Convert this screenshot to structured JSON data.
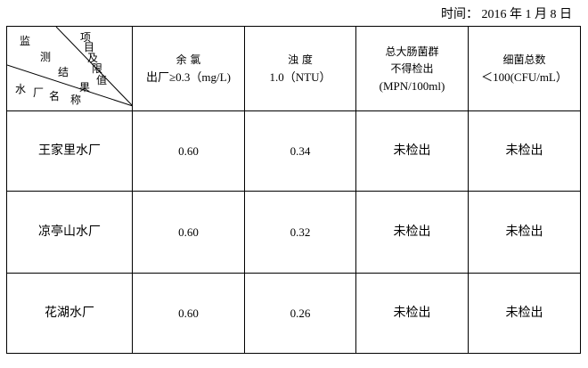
{
  "date": "时间： 2016 年 1 月 8 日",
  "corner": {
    "top": [
      "项",
      "目",
      "及",
      "限",
      "值"
    ],
    "middle": [
      "监",
      "测",
      "结",
      "果"
    ],
    "bottom": [
      "水",
      "厂",
      "名",
      "称"
    ]
  },
  "headers": [
    {
      "lines": [
        "余 氯",
        "出厂≥0.3（mg/L)"
      ]
    },
    {
      "lines": [
        "浊 度",
        "1.0（NTU）"
      ]
    },
    {
      "lines": [
        "总大肠菌群",
        "不得检出",
        "(MPN/100ml)"
      ]
    },
    {
      "lines": [
        "细菌总数",
        "＜100(CFU/mL）"
      ]
    }
  ],
  "rows": [
    {
      "name": "王家里水厂",
      "values": [
        "0.60",
        "0.34",
        "未检出",
        "未检出"
      ]
    },
    {
      "name": "凉亭山水厂",
      "values": [
        "0.60",
        "0.32",
        "未检出",
        "未检出"
      ]
    },
    {
      "name": "花湖水厂",
      "values": [
        "0.60",
        "0.26",
        "未检出",
        "未检出"
      ]
    }
  ]
}
